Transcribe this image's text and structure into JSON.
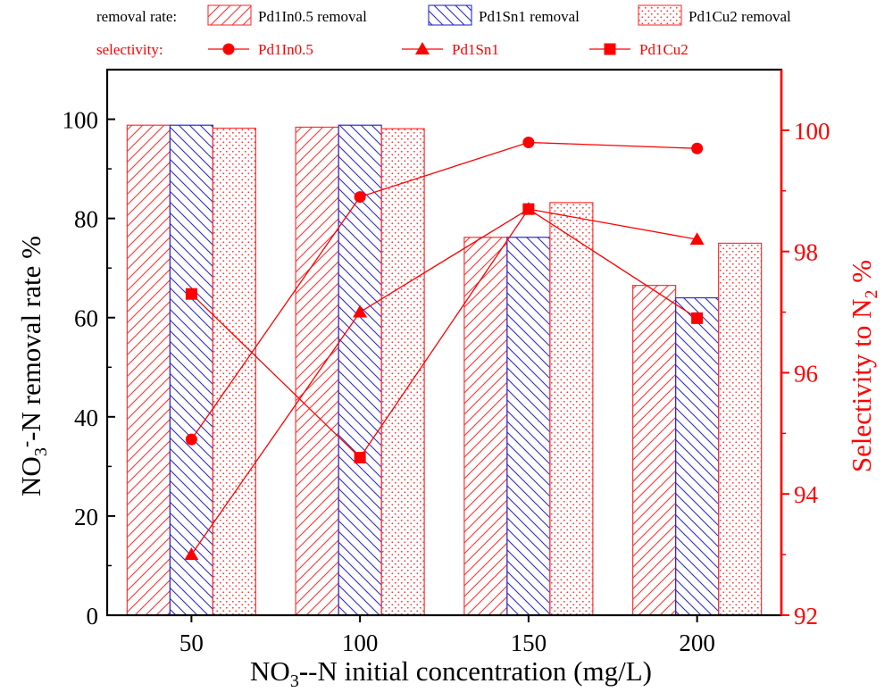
{
  "chart_data": {
    "type": "bar",
    "categories": [
      "50",
      "100",
      "150",
      "200"
    ],
    "xlabel_main": "NO",
    "xlabel_sub": "3",
    "xlabel_sup": "-",
    "xlabel_rest": "-N initial concentration (mg/L)",
    "ylabel_main": "NO",
    "ylabel_sub": "3",
    "ylabel_sup": "-",
    "ylabel_rest": "-N removal rate %",
    "y2label_main": "Selectivity to N",
    "y2label_sub": "2",
    "y2label_rest": " %",
    "ylim": [
      0,
      110
    ],
    "yticks": [
      0,
      20,
      40,
      60,
      80,
      100
    ],
    "y2lim": [
      92,
      101
    ],
    "y2ticks": [
      92,
      94,
      96,
      98,
      100
    ],
    "removal_series": [
      {
        "name": "Pd1In0.5  removal",
        "values": [
          98.8,
          98.4,
          76.2,
          66.5
        ],
        "color": "#ff3333",
        "pattern": "hatch-right"
      },
      {
        "name": "Pd1Sn1 removal",
        "values": [
          98.8,
          98.8,
          76.2,
          64.0
        ],
        "color": "#2b2bcc",
        "pattern": "hatch-left"
      },
      {
        "name": "Pd1Cu2 removal",
        "values": [
          98.2,
          98.1,
          83.2,
          75.0
        ],
        "color": "#ff3333",
        "pattern": "dots"
      }
    ],
    "selectivity_series": [
      {
        "name": "Pd1In0.5",
        "marker": "circle",
        "values": [
          94.9,
          98.9,
          99.8,
          99.7
        ]
      },
      {
        "name": "Pd1Sn1",
        "marker": "triangle",
        "values": [
          93.0,
          97.0,
          98.7,
          98.2
        ]
      },
      {
        "name": "Pd1Cu2",
        "marker": "square",
        "values": [
          97.3,
          94.6,
          98.7,
          96.9
        ]
      }
    ],
    "legend_removal_label": "removal rate:",
    "legend_selectivity_label": "selectivity:",
    "colors": {
      "primary": "#ff0000",
      "axis": "#000000",
      "secondary_axis": "#ff0000"
    }
  }
}
